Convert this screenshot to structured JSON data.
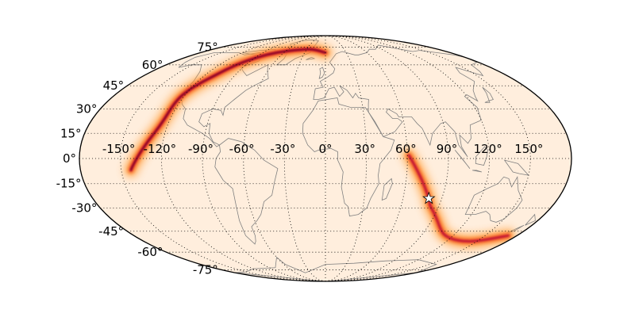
{
  "map": {
    "projection": "mollweide",
    "background_color": "#ffeedd",
    "coastline_color": "#808080",
    "graticule": {
      "lat_step_deg": 15,
      "lon_step_deg": 30,
      "style": "dotted"
    },
    "lat_labels": [
      "75°",
      "60°",
      "45°",
      "30°",
      "15°",
      "0°",
      "-15°",
      "-30°",
      "-45°",
      "-60°",
      "-75°"
    ],
    "lat_values": [
      75,
      60,
      45,
      30,
      15,
      0,
      -15,
      -30,
      -45,
      -60,
      -75
    ],
    "lon_labels": [
      "-150°",
      "-120°",
      "-90°",
      "-60°",
      "-30°",
      "0°",
      "30°",
      "60°",
      "90°",
      "120°",
      "150°"
    ],
    "lon_values": [
      -150,
      -120,
      -90,
      -60,
      -30,
      0,
      30,
      60,
      90,
      120,
      150
    ],
    "colormap": [
      "#ffeedd",
      "#ffa040",
      "#e8261a",
      "#b0003a",
      "#300010"
    ],
    "probability_bands": [
      {
        "points_lon_lat": [
          [
            -143,
            -7
          ],
          [
            -126,
            19
          ],
          [
            -122,
            39
          ],
          [
            -110,
            52
          ],
          [
            -95,
            63
          ],
          [
            -70,
            70
          ],
          [
            -26,
            73
          ],
          [
            0,
            70
          ]
        ],
        "peak_intensity": 1.0
      },
      {
        "points_lon_lat": [
          [
            61,
            2
          ],
          [
            71,
            -12
          ],
          [
            80,
            -24
          ],
          [
            86,
            -31
          ],
          [
            110,
            -47
          ],
          [
            142,
            -52
          ],
          [
            172,
            -48
          ]
        ],
        "peak_intensity": 0.8
      }
    ],
    "marker": {
      "symbol": "star",
      "lon": 80,
      "lat": -24,
      "color": "#ffffff"
    }
  }
}
